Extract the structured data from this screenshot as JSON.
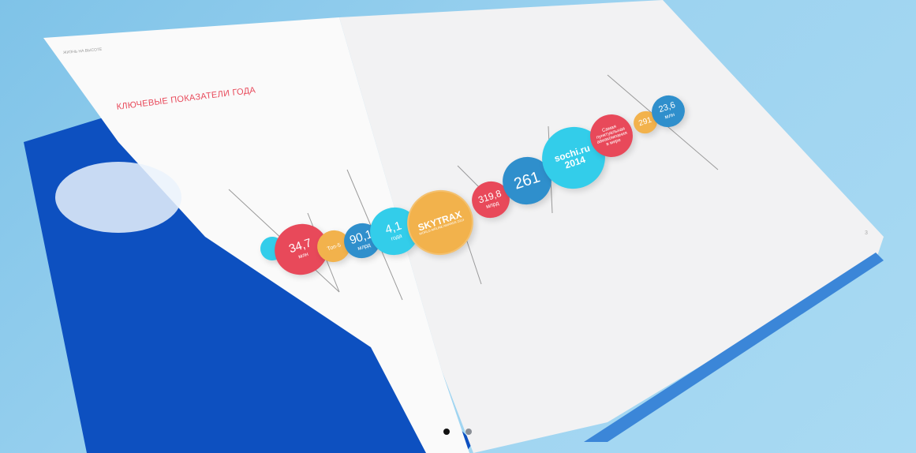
{
  "brochure": {
    "header": "ЖИЗНЬ НА ВЫСОТЕ",
    "title": "КЛЮЧЕВЫЕ ПОКАЗАТЕЛИ ГОДА",
    "page_number": "3",
    "bubbles": [
      {
        "value": "34,7",
        "unit": "млн",
        "color": "#e8495a"
      },
      {
        "value": "Топ-5",
        "unit": "",
        "color": "#f2b24c"
      },
      {
        "value": "90,1",
        "unit": "млрд",
        "color": "#2f8fcc"
      },
      {
        "value": "4,1",
        "unit": "года",
        "color": "#33cdea"
      },
      {
        "value": "SKYTRAX",
        "unit": "WORLD AIRLINE AWARDS 2014",
        "color": "#f2b24c"
      },
      {
        "value": "319,8",
        "unit": "млрд",
        "color": "#e8495a"
      },
      {
        "value": "261",
        "unit": "",
        "color": "#2f8fcc"
      },
      {
        "value": "sochi.ru 2014",
        "unit": "",
        "color": "#33cdea"
      },
      {
        "value": "Самая пунктуальная авиакомпания в мире",
        "unit": "",
        "color": "#e8495a"
      },
      {
        "value": "291",
        "unit": "",
        "color": "#f2b24c"
      },
      {
        "value": "23,6",
        "unit": "млн",
        "color": "#2f8fcc"
      }
    ]
  },
  "carousel": {
    "active_index": 0,
    "count": 2
  }
}
